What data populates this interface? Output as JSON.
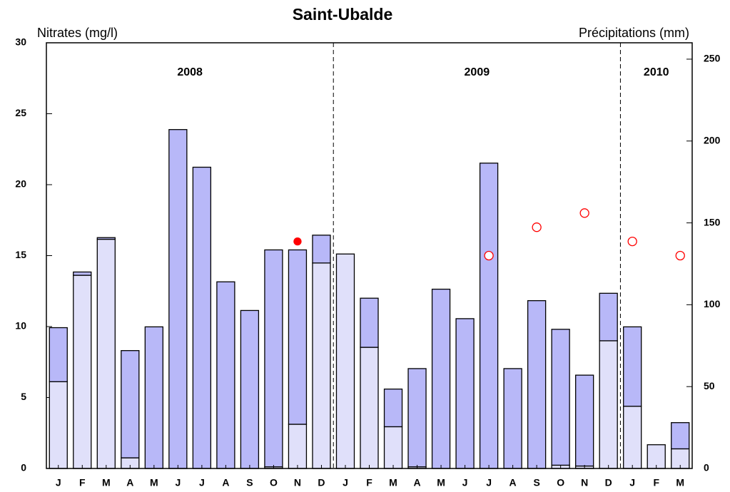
{
  "chart_data": {
    "type": "bar",
    "title": "Saint-Ubalde",
    "y_label": "Nitrates (mg/l)",
    "y2_label": "Précipitations (mm)",
    "categories": [
      "J",
      "F",
      "M",
      "A",
      "M",
      "J",
      "J",
      "A",
      "S",
      "O",
      "N",
      "D",
      "J",
      "F",
      "M",
      "A",
      "M",
      "J",
      "J",
      "A",
      "S",
      "O",
      "N",
      "D",
      "J",
      "F",
      "M"
    ],
    "year_groups": [
      {
        "label": "2008",
        "count": 12
      },
      {
        "label": "2009",
        "count": 12
      },
      {
        "label": "2010",
        "count": 3
      }
    ],
    "ylim": [
      0,
      30
    ],
    "yticks": [
      0,
      5,
      10,
      15,
      20,
      25,
      30
    ],
    "y2lim": [
      0,
      260
    ],
    "y2ticks": [
      0,
      50,
      100,
      150,
      200,
      250
    ],
    "series": [
      {
        "type": "bar",
        "axis": "y2",
        "color": "#e0e0fa",
        "values": [
          53,
          118,
          140,
          6.5,
          0,
          0,
          0,
          0,
          0,
          1,
          27,
          125.5,
          131,
          74,
          25.5,
          1,
          0,
          0,
          0,
          0,
          0,
          2,
          1.5,
          78,
          38,
          14.5,
          12
        ]
      },
      {
        "type": "bar",
        "axis": "y2",
        "color": "#b8b8f8",
        "values": [
          33,
          2,
          1,
          65.5,
          86.5,
          207,
          184,
          114,
          96.5,
          132.5,
          106.5,
          17,
          0,
          30,
          23,
          60,
          109.5,
          91.5,
          186.5,
          61,
          102.5,
          83,
          55.5,
          29,
          48.5,
          0,
          16
        ]
      },
      {
        "type": "line",
        "axis": "y",
        "color": "#ff0000",
        "marker": "filled",
        "values": [
          null,
          null,
          null,
          null,
          null,
          null,
          null,
          null,
          null,
          null,
          16,
          null,
          null,
          null,
          null,
          null,
          null,
          null,
          null,
          null,
          null,
          null,
          null,
          null,
          null,
          null,
          null
        ]
      },
      {
        "type": "line",
        "axis": "y",
        "color": "#ff0000",
        "marker": "open",
        "values": [
          null,
          null,
          null,
          null,
          null,
          null,
          null,
          null,
          null,
          null,
          null,
          null,
          null,
          null,
          null,
          null,
          null,
          null,
          15,
          null,
          17,
          null,
          18,
          null,
          16,
          null,
          15
        ]
      }
    ]
  }
}
